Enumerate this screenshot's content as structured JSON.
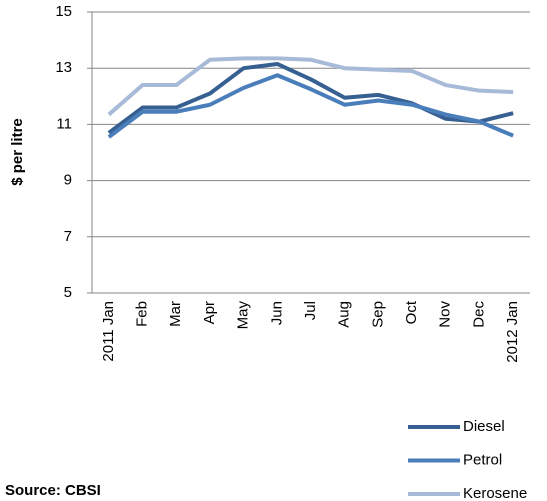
{
  "chart_data": {
    "type": "line",
    "y_label": "$ per litre",
    "annotation": "Source: CBSI",
    "categories": [
      "2011 Jan",
      "Feb",
      "Mar",
      "Apr",
      "May",
      "Jun",
      "Jul",
      "Aug",
      "Sep",
      "Oct",
      "Nov",
      "Dec",
      "2012 Jan"
    ],
    "series": [
      {
        "name": "Diesel",
        "color": "#376092",
        "values": [
          10.7,
          11.6,
          11.6,
          12.1,
          13.0,
          13.15,
          12.6,
          11.95,
          12.05,
          11.75,
          11.2,
          11.1,
          11.4
        ]
      },
      {
        "name": "Petrol",
        "color": "#4a7ebb",
        "values": [
          10.55,
          11.45,
          11.45,
          11.7,
          12.3,
          12.75,
          12.25,
          11.7,
          11.85,
          11.7,
          11.35,
          11.1,
          10.6
        ]
      },
      {
        "name": "Kerosene",
        "color": "#a7bad8",
        "values": [
          11.35,
          12.4,
          12.4,
          13.3,
          13.35,
          13.35,
          13.3,
          13.0,
          12.95,
          12.9,
          12.4,
          12.2,
          12.15
        ]
      }
    ],
    "ylim": [
      5,
      15
    ],
    "yticks": [
      5,
      7,
      9,
      11,
      13,
      15
    ],
    "grid": true,
    "legend": "bottom-right"
  }
}
